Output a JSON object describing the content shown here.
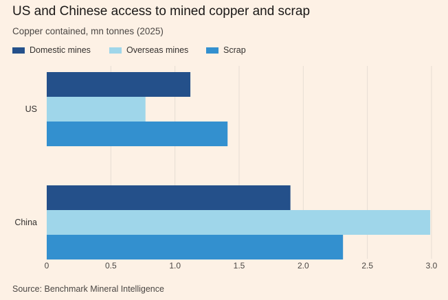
{
  "title": "US and Chinese access to mined copper and scrap",
  "subtitle": "Copper contained, mn tonnes (2025)",
  "source": "Source: Benchmark Mineral Intelligence",
  "colors": {
    "domestic": "#24508A",
    "overseas": "#9FD6EA",
    "scrap": "#3390CF",
    "grid": "#E6DDD3",
    "axis": "#66605C"
  },
  "chart_data": {
    "type": "bar",
    "orientation": "horizontal",
    "title": "US and Chinese access to mined copper and scrap",
    "subtitle": "Copper contained, mn tonnes (2025)",
    "categories": [
      "US",
      "China"
    ],
    "series": [
      {
        "name": "Domestic mines",
        "color": "#24508A",
        "values": [
          1.12,
          1.9
        ]
      },
      {
        "name": "Overseas mines",
        "color": "#9FD6EA",
        "values": [
          0.77,
          2.99
        ]
      },
      {
        "name": "Scrap",
        "color": "#3390CF",
        "values": [
          1.41,
          2.31
        ]
      }
    ],
    "xlim": [
      0,
      3.0
    ],
    "xticks": [
      0,
      0.5,
      1.0,
      1.5,
      2.0,
      2.5,
      3.0
    ],
    "xtick_labels": [
      "0",
      "0.5",
      "1.0",
      "1.5",
      "2.0",
      "2.5",
      "3.0"
    ],
    "xlabel": "",
    "ylabel": "",
    "legend_position": "top-left",
    "grid": true
  }
}
